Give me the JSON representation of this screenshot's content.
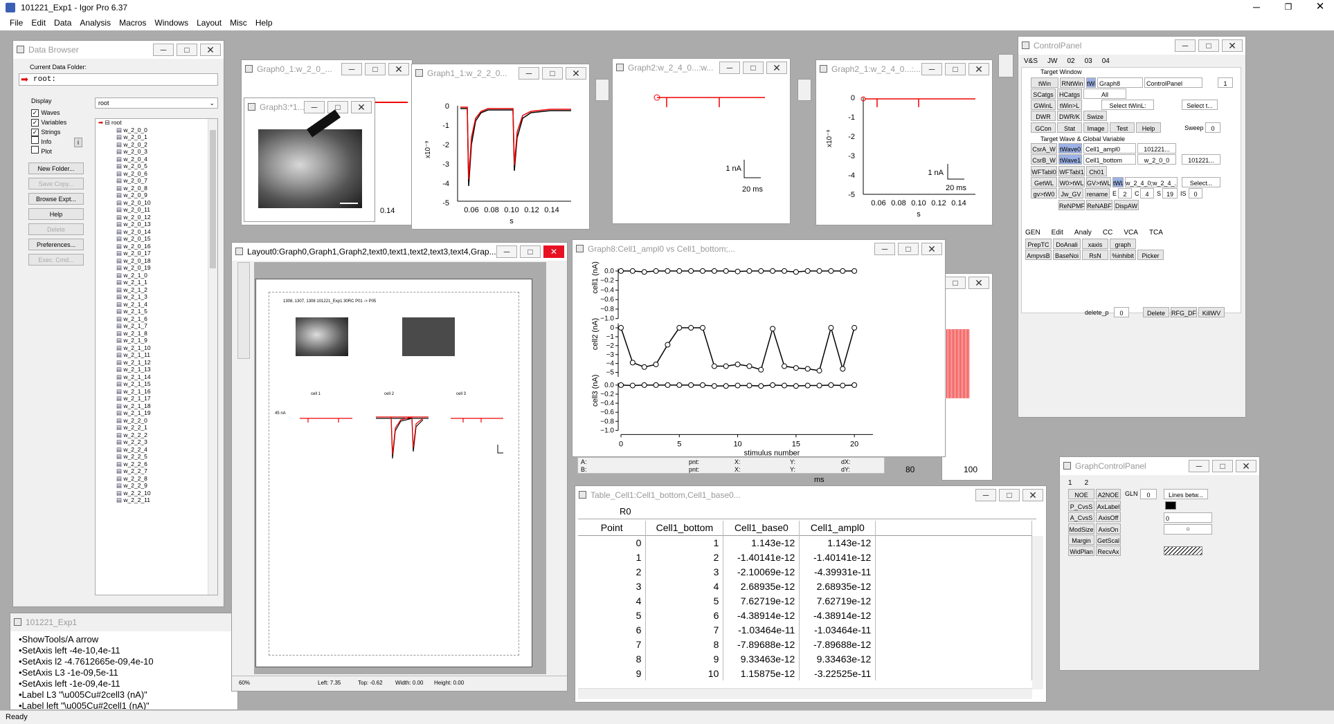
{
  "app": {
    "title": "101221_Exp1 - Igor Pro 6.37",
    "status": "Ready"
  },
  "menu": [
    "File",
    "Edit",
    "Data",
    "Analysis",
    "Macros",
    "Windows",
    "Layout",
    "Misc",
    "Help"
  ],
  "data_browser": {
    "title": "Data Browser",
    "current_folder_label": "Current Data Folder:",
    "current_folder": "root:",
    "display_label": "Display",
    "checks": [
      {
        "label": "Waves",
        "checked": true
      },
      {
        "label": "Variables",
        "checked": true
      },
      {
        "label": "Strings",
        "checked": true
      },
      {
        "label": "Info",
        "checked": false
      },
      {
        "label": "Plot",
        "checked": false
      }
    ],
    "buttons": [
      "New Folder...",
      "Save Copy...",
      "Browse Expt...",
      "Help",
      "Delete",
      "Preferences...",
      "Exec. Cmd..."
    ],
    "folder_select": "root",
    "tree_root": "root",
    "waves": [
      "w_2_0_0",
      "w_2_0_1",
      "w_2_0_2",
      "w_2_0_3",
      "w_2_0_4",
      "w_2_0_5",
      "w_2_0_6",
      "w_2_0_7",
      "w_2_0_8",
      "w_2_0_9",
      "w_2_0_10",
      "w_2_0_11",
      "w_2_0_12",
      "w_2_0_13",
      "w_2_0_14",
      "w_2_0_15",
      "w_2_0_16",
      "w_2_0_17",
      "w_2_0_18",
      "w_2_0_19",
      "w_2_1_0",
      "w_2_1_1",
      "w_2_1_2",
      "w_2_1_3",
      "w_2_1_4",
      "w_2_1_5",
      "w_2_1_6",
      "w_2_1_7",
      "w_2_1_8",
      "w_2_1_9",
      "w_2_1_10",
      "w_2_1_11",
      "w_2_1_12",
      "w_2_1_13",
      "w_2_1_14",
      "w_2_1_15",
      "w_2_1_16",
      "w_2_1_17",
      "w_2_1_18",
      "w_2_1_19",
      "w_2_2_0",
      "w_2_2_1",
      "w_2_2_2",
      "w_2_2_3",
      "w_2_2_4",
      "w_2_2_5",
      "w_2_2_6",
      "w_2_2_7",
      "w_2_2_8",
      "w_2_2_9",
      "w_2_2_10",
      "w_2_2_11"
    ]
  },
  "history": {
    "title": "101221_Exp1",
    "lines": [
      "•ShowTools/A arrow",
      "•SetAxis left -4e-10,4e-11",
      "•SetAxis l2 -4.7612665e-09,4e-10",
      "•SetAxis L3 -1e-09,5e-11",
      "•SetAxis left -1e-09,4e-11",
      "•Label L3 \"\\u005Cu#2cell3 (nA)\"",
      "•Label left \"\\u005Cu#2cell1 (nA)\""
    ]
  },
  "graph0": {
    "title": "Graph0_1:w_2_0_..."
  },
  "graph3": {
    "title": "Graph3:*1..."
  },
  "graph1": {
    "title": "Graph1_1:w_2_2_0...",
    "xticks": [
      "0.06",
      "0.08",
      "0.10",
      "0.12",
      "0.14"
    ],
    "yticks": [
      "0",
      "-1",
      "-2",
      "-3",
      "-4",
      "-5"
    ],
    "xlabel": "s",
    "yexp": "x10⁻⁹"
  },
  "graph2": {
    "title": "Graph2:w_2_4_0...:w...",
    "scale_y": "1 nA",
    "scale_x": "20 ms"
  },
  "graph2b": {
    "title": "Graph2_1:w_2_4_0...:...",
    "xticks": [
      "0.06",
      "0.08",
      "0.10",
      "0.12",
      "0.14"
    ],
    "yticks": [
      "0",
      "-1",
      "-2",
      "-3",
      "-4",
      "-5"
    ],
    "xlabel": "s",
    "yexp": "x10⁻⁹",
    "scale_y": "1 nA",
    "scale_x": "20 ms"
  },
  "layout": {
    "title": "Layout0:Graph0,Graph1,Graph2,text0,text1,text2,text3,text4,Grap...",
    "page_header": "1308, 1307, 1308 101221_Exp1 30RC P01 -> P05",
    "cell_labels": [
      "cell 1",
      "cell 2",
      "cell 3"
    ],
    "scale": "45 nA",
    "zoom": "60%",
    "left": "Left: 7.35",
    "top": "Top: -0.62",
    "width": "Width: 0.00",
    "height": "Height: 0.00"
  },
  "graph8": {
    "title": "Graph8:Cell1_ampl0 vs Cell1_bottom;...",
    "xlabel": "stimulus number",
    "panel_labels": [
      "cell1 (nA)",
      "cell2 (nA)",
      "cell3 (nA)"
    ],
    "xticks": [
      "0",
      "5",
      "10",
      "15",
      "20"
    ],
    "cursor": {
      "a": "A:",
      "b": "B:",
      "pnt": "pnt:",
      "x": "X:",
      "y": "Y:",
      "dx": "dX:",
      "dy": "dY:"
    },
    "bg_ticks": [
      "80",
      "100"
    ],
    "bg_unit": "ms"
  },
  "table": {
    "title": "Table_Cell1:Cell1_bottom,Cell1_base0...",
    "cell_ref": "R0",
    "columns": [
      "Point",
      "Cell1_bottom",
      "Cell1_base0",
      "Cell1_ampl0"
    ],
    "rows": [
      [
        "0",
        "1",
        "1.143e-12",
        "1.143e-12"
      ],
      [
        "1",
        "2",
        "-1.40141e-12",
        "-1.40141e-12"
      ],
      [
        "2",
        "3",
        "-2.10069e-12",
        "-4.39931e-11"
      ],
      [
        "3",
        "4",
        "2.68935e-12",
        "2.68935e-12"
      ],
      [
        "4",
        "5",
        "7.62719e-12",
        "7.62719e-12"
      ],
      [
        "5",
        "6",
        "-4.38914e-12",
        "-4.38914e-12"
      ],
      [
        "6",
        "7",
        "-1.03464e-11",
        "-1.03464e-11"
      ],
      [
        "7",
        "8",
        "-7.89688e-12",
        "-7.89688e-12"
      ],
      [
        "8",
        "9",
        "9.33463e-12",
        "9.33463e-12"
      ],
      [
        "9",
        "10",
        "1.15875e-12",
        "-3.22525e-11"
      ]
    ]
  },
  "control_panel": {
    "title": "ControlPanel",
    "tabs": [
      "V&S",
      "JW",
      "02",
      "03",
      "04"
    ],
    "target_window_label": "Target Window",
    "tw_buttons": [
      "tWin",
      "RNtWin",
      "tWi"
    ],
    "tw_value": "Graph8",
    "tw_select": "ControlPanel",
    "tw_num": "1",
    "row2": [
      "SCatgs",
      "HCatgs"
    ],
    "all_select": "All",
    "row3": [
      "GWinL",
      "tWin>L"
    ],
    "select_twinl": "Select tWinL:",
    "select_t": "Select t...",
    "row4": [
      "DWR",
      "DWR/K",
      "Swize"
    ],
    "row5": [
      "GCon",
      "Stat",
      "Image",
      "Test",
      "Help"
    ],
    "sweep_label": "Sweep",
    "sweep_val": "0",
    "target_wave_label": "Target Wave & Global Variable",
    "csra": "CsrA_W",
    "wave0": "tWave0",
    "csra_val": "Cell1_ampl0",
    "csra_sel": "101221...",
    "csrb": "CsrB_W",
    "wave1": "tWave1",
    "csrb_val": "Cell1_bottom",
    "csrb_sel": "w_2_0_0",
    "csrb_sel2": "101221...",
    "row_wft": [
      "WFTabl0",
      "WFTabl1",
      "Ch01"
    ],
    "row_getwl": [
      "GetWL",
      "W0>tWL",
      "GV>tWL",
      "tWL"
    ],
    "getwl_val": "w_2_4_0;w_2_4_...",
    "getwl_sel": "Select...",
    "row_gv": [
      "gv>tW0",
      "Jw_GV",
      "rename"
    ],
    "gv_e": "E",
    "gv_e_val": "2",
    "gv_c": "C",
    "gv_c_val": "4",
    "gv_s": "S",
    "gv_s_val": "19",
    "gv_is": "IS",
    "gv_is_val": "0",
    "row_re": [
      "ReNPMF",
      "ReNABF",
      "DispAW"
    ],
    "tabs2": [
      "GEN",
      "Edit",
      "Analy",
      "CC",
      "VCA",
      "TCA"
    ],
    "row_gen1": [
      "PrepTC",
      "DoAnali",
      "xaxis",
      "graph"
    ],
    "row_gen2": [
      "AmpvsB",
      "BaseNoi",
      "RsN",
      "%inhibit",
      "Picker"
    ],
    "delete_label": "delete_p",
    "delete_val": "0",
    "row_del": [
      "Delete",
      "RFG_DF",
      "KillWV"
    ]
  },
  "graph_control_panel": {
    "title": "GraphControlPanel",
    "tabs": [
      "1",
      "2"
    ],
    "r1": [
      "NOE",
      "A2NOE"
    ],
    "gln_label": "GLN",
    "gln_val": "0",
    "lines_sel": "Lines betw...",
    "r2": [
      "P_CvsS",
      "AxLabel"
    ],
    "r3": [
      "A_CvsS",
      "AxisOff"
    ],
    "r3_sel": "0",
    "r4": [
      "ModSize",
      "AxisOn"
    ],
    "r5": [
      "Margin",
      "GetScal"
    ],
    "r6": [
      "WidPlan",
      "RecvAx"
    ]
  },
  "chart_data": [
    {
      "type": "line",
      "title": "",
      "xlabel": "stimulus number",
      "x": [
        0,
        1,
        2,
        3,
        4,
        5,
        6,
        7,
        8,
        9,
        10,
        11,
        12,
        13,
        14,
        15,
        16,
        17,
        18,
        19,
        20
      ],
      "series": [
        {
          "name": "cell1 (nA)",
          "values": [
            0,
            0,
            -0.02,
            0,
            0,
            0,
            0,
            0,
            0,
            0,
            -0.01,
            0,
            0,
            0,
            0,
            -0.02,
            0,
            0,
            0,
            0,
            0
          ]
        },
        {
          "name": "cell2 (nA)",
          "values": [
            0,
            -3.9,
            -4.4,
            -4.1,
            -1.9,
            0,
            0,
            0,
            -4.3,
            -4.3,
            -4.1,
            -4.3,
            -4.7,
            -0.1,
            -4.3,
            -4.5,
            -4.6,
            -4.8,
            0,
            -4.6,
            0
          ]
        },
        {
          "name": "cell3 (nA)",
          "values": [
            0,
            -0.01,
            0,
            0,
            0,
            0,
            0,
            0,
            -0.02,
            -0.02,
            -0.01,
            -0.01,
            -0.02,
            0,
            -0.01,
            -0.02,
            -0.01,
            -0.01,
            0,
            -0.01,
            0
          ]
        }
      ],
      "xlim": [
        0,
        21
      ]
    }
  ]
}
